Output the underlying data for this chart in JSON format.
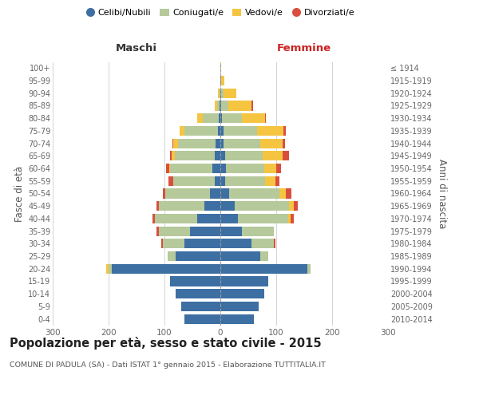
{
  "age_groups": [
    "0-4",
    "5-9",
    "10-14",
    "15-19",
    "20-24",
    "25-29",
    "30-34",
    "35-39",
    "40-44",
    "45-49",
    "50-54",
    "55-59",
    "60-64",
    "65-69",
    "70-74",
    "75-79",
    "80-84",
    "85-89",
    "90-94",
    "95-99",
    "100+"
  ],
  "birth_years": [
    "2010-2014",
    "2005-2009",
    "2000-2004",
    "1995-1999",
    "1990-1994",
    "1985-1989",
    "1980-1984",
    "1975-1979",
    "1970-1974",
    "1965-1969",
    "1960-1964",
    "1955-1959",
    "1950-1954",
    "1945-1949",
    "1940-1944",
    "1935-1939",
    "1930-1934",
    "1925-1929",
    "1920-1924",
    "1915-1919",
    "≤ 1914"
  ],
  "maschi_celibi": [
    65,
    70,
    80,
    90,
    195,
    80,
    65,
    55,
    42,
    28,
    18,
    10,
    14,
    10,
    8,
    5,
    3,
    1,
    0,
    0,
    0
  ],
  "maschi_coniugati": [
    0,
    0,
    0,
    0,
    5,
    15,
    38,
    55,
    75,
    82,
    80,
    75,
    76,
    72,
    68,
    60,
    28,
    5,
    2,
    0,
    0
  ],
  "maschi_vedovi": [
    0,
    0,
    0,
    0,
    5,
    0,
    0,
    0,
    0,
    0,
    0,
    0,
    2,
    5,
    8,
    8,
    10,
    4,
    2,
    0,
    0
  ],
  "maschi_divorziati": [
    0,
    0,
    0,
    0,
    0,
    0,
    3,
    5,
    5,
    5,
    5,
    8,
    5,
    3,
    2,
    0,
    0,
    0,
    0,
    0,
    0
  ],
  "femmine_nubili": [
    60,
    68,
    78,
    85,
    155,
    72,
    55,
    38,
    32,
    25,
    15,
    8,
    10,
    8,
    6,
    5,
    3,
    2,
    2,
    2,
    0
  ],
  "femmine_coniugate": [
    0,
    0,
    0,
    0,
    7,
    14,
    40,
    58,
    90,
    98,
    90,
    72,
    68,
    68,
    65,
    60,
    35,
    12,
    4,
    0,
    0
  ],
  "femmine_vedove": [
    0,
    0,
    0,
    0,
    0,
    0,
    0,
    0,
    4,
    8,
    12,
    18,
    22,
    35,
    40,
    48,
    42,
    42,
    22,
    5,
    1
  ],
  "femmine_divorziate": [
    0,
    0,
    0,
    0,
    0,
    0,
    3,
    0,
    5,
    8,
    10,
    8,
    8,
    12,
    4,
    4,
    2,
    2,
    0,
    0,
    0
  ],
  "color_celibi": "#3d6fa3",
  "color_coniugati": "#b5c99a",
  "color_vedovi": "#f5c542",
  "color_divorziati": "#d94f3d",
  "xlim": 300,
  "title": "Popolazione per età, sesso e stato civile - 2015",
  "subtitle": "COMUNE DI PADULA (SA) - Dati ISTAT 1° gennaio 2015 - Elaborazione TUTTITALIA.IT",
  "label_maschi": "Maschi",
  "label_femmine": "Femmine",
  "ylabel_left": "Fasce di età",
  "ylabel_right": "Anni di nascita",
  "legend_labels": [
    "Celibi/Nubili",
    "Coniugati/e",
    "Vedovi/e",
    "Divorziati/e"
  ],
  "bg_color": "#ffffff"
}
